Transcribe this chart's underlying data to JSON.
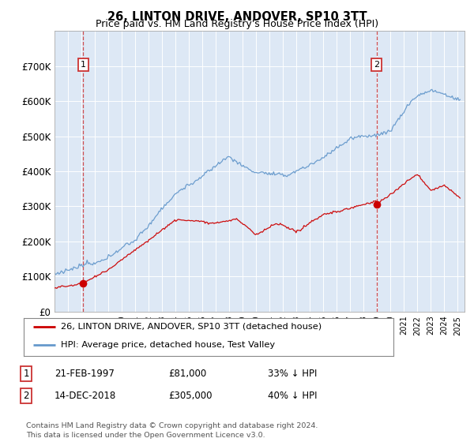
{
  "title": "26, LINTON DRIVE, ANDOVER, SP10 3TT",
  "subtitle": "Price paid vs. HM Land Registry's House Price Index (HPI)",
  "ylim": [
    0,
    800000
  ],
  "yticks": [
    0,
    100000,
    200000,
    300000,
    400000,
    500000,
    600000,
    700000
  ],
  "ytick_labels": [
    "£0",
    "£100K",
    "£200K",
    "£300K",
    "£400K",
    "£500K",
    "£600K",
    "£700K"
  ],
  "background_color": "#dde8f5",
  "hpi_color": "#6699cc",
  "price_color": "#cc0000",
  "vline_color": "#cc3333",
  "sale1_x": 1997.13,
  "sale1_y": 81000,
  "sale2_x": 2018.95,
  "sale2_y": 305000,
  "xmin": 1995.0,
  "xmax": 2025.5,
  "legend_items": [
    {
      "label": "26, LINTON DRIVE, ANDOVER, SP10 3TT (detached house)",
      "color": "#cc0000"
    },
    {
      "label": "HPI: Average price, detached house, Test Valley",
      "color": "#6699cc"
    }
  ],
  "table_rows": [
    {
      "num": "1",
      "date": "21-FEB-1997",
      "price": "£81,000",
      "hpi": "33% ↓ HPI"
    },
    {
      "num": "2",
      "date": "14-DEC-2018",
      "price": "£305,000",
      "hpi": "40% ↓ HPI"
    }
  ],
  "footer": "Contains HM Land Registry data © Crown copyright and database right 2024.\nThis data is licensed under the Open Government Licence v3.0."
}
